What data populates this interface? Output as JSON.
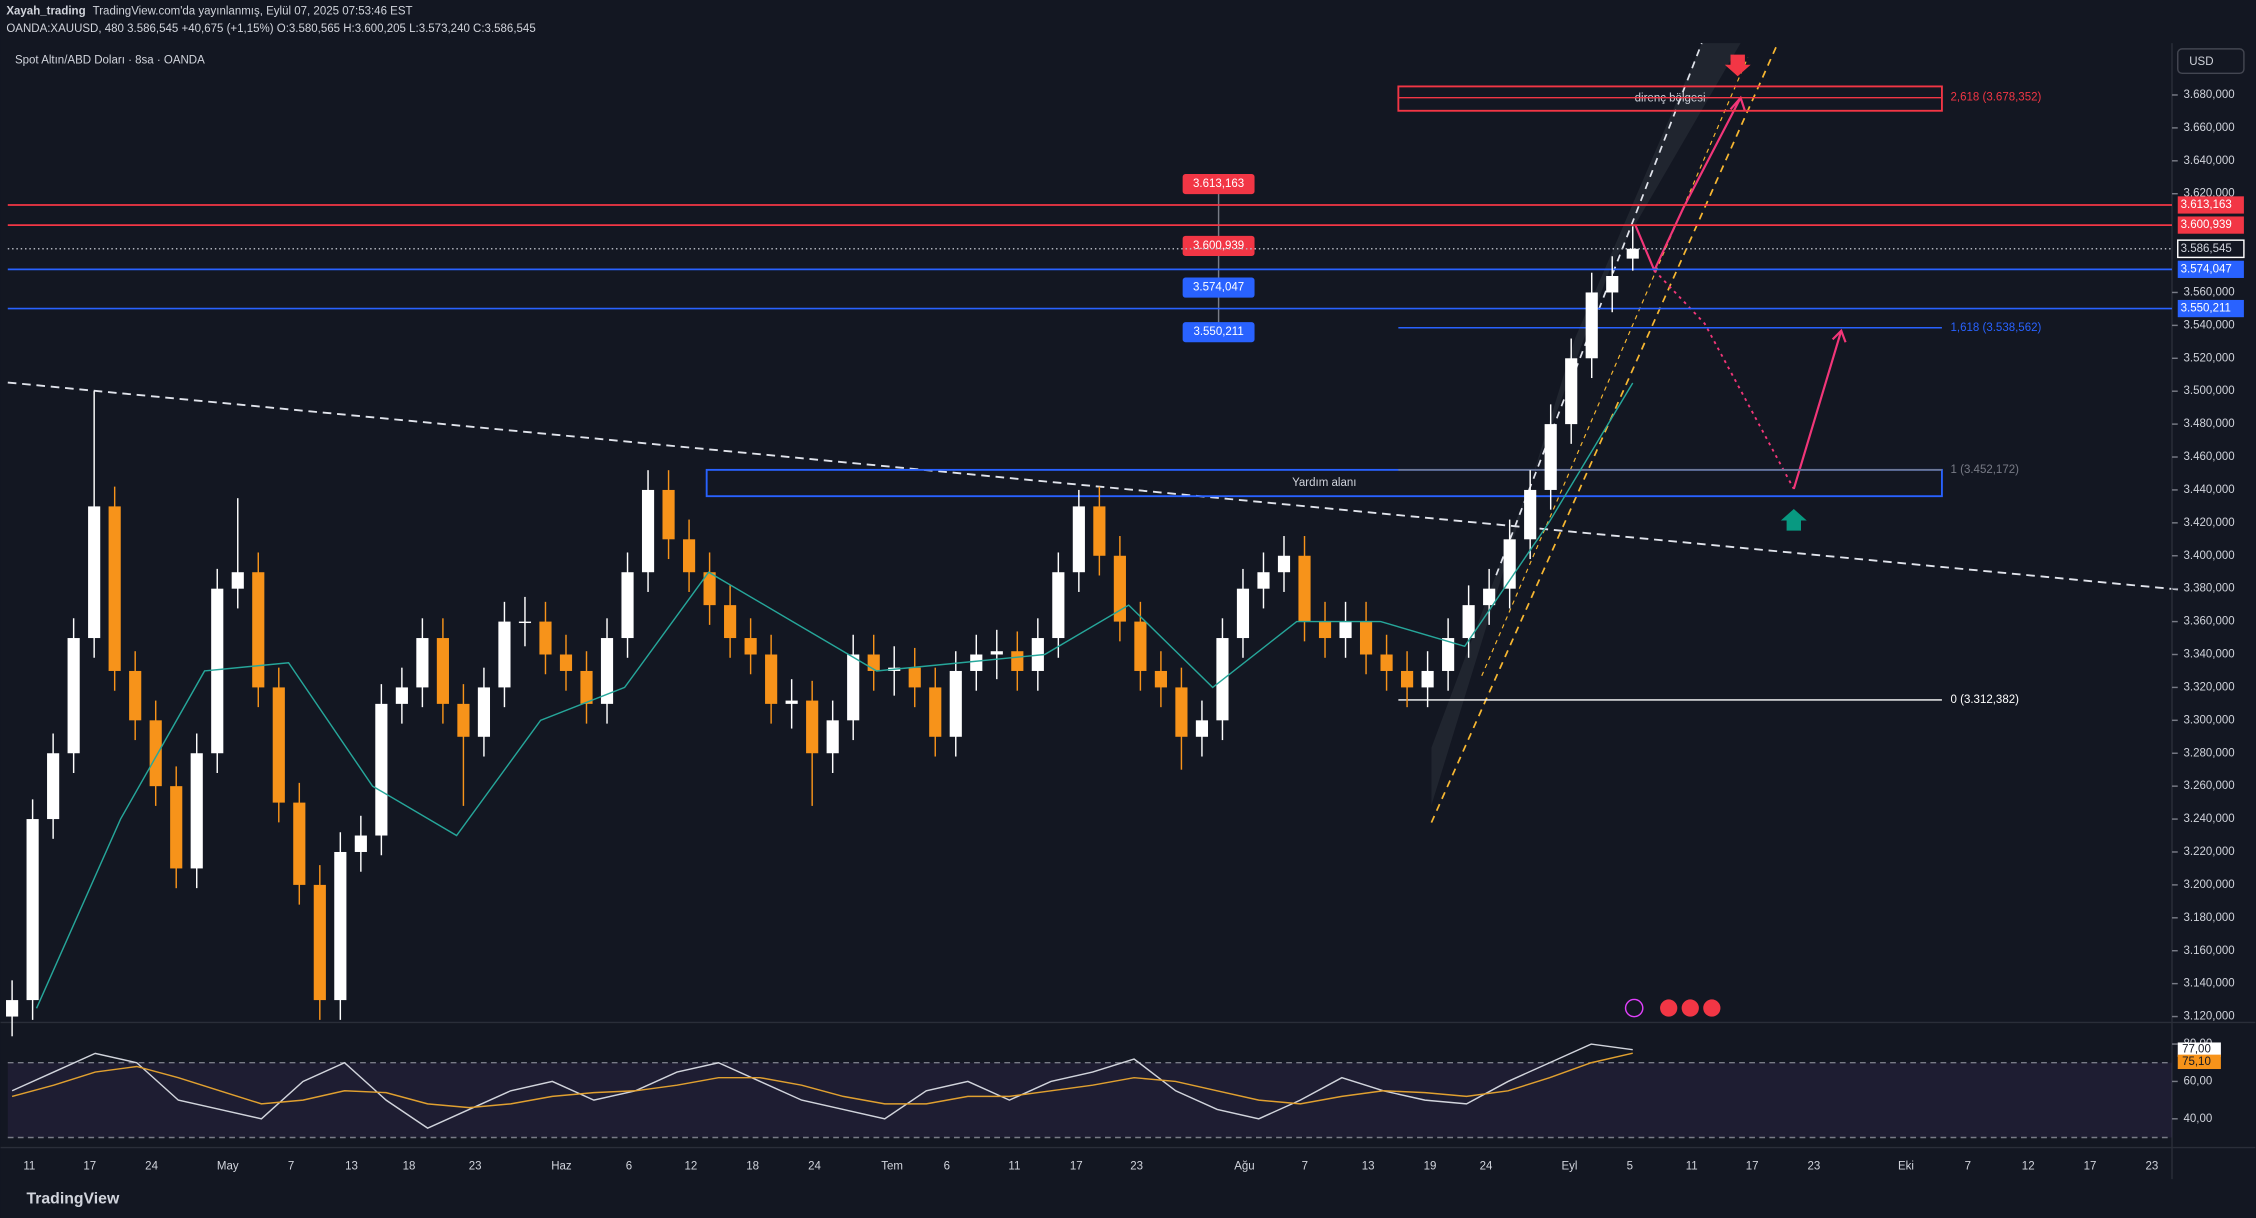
{
  "header": {
    "publisher": "Xayah_trading",
    "published": "TradingView.com'da yayınlanmış, Eylül 07, 2025 07:53:46 EST",
    "quote": "OANDA:XAUUSD, 480  3.586,545  +40,675 (+1,15%)  O:3.580,565  H:3.600,205  L:3.573,240  C:3.586,545"
  },
  "chart_data": {
    "type": "candlestick",
    "title": "Spot Altın/ABD Doları · 8sa · OANDA",
    "currency": "USD",
    "up_color": "#ffffff",
    "down_color": "#f7931a",
    "ohlc": [
      [
        3120,
        3142,
        3108,
        3130
      ],
      [
        3130,
        3252,
        3118,
        3240
      ],
      [
        3240,
        3292,
        3228,
        3280
      ],
      [
        3280,
        3362,
        3268,
        3350
      ],
      [
        3350,
        3500,
        3338,
        3430
      ],
      [
        3430,
        3442,
        3318,
        3330
      ],
      [
        3330,
        3342,
        3288,
        3300
      ],
      [
        3300,
        3312,
        3248,
        3260
      ],
      [
        3260,
        3272,
        3198,
        3210
      ],
      [
        3210,
        3292,
        3198,
        3280
      ],
      [
        3280,
        3392,
        3268,
        3380
      ],
      [
        3380,
        3435,
        3368,
        3390
      ],
      [
        3390,
        3402,
        3308,
        3320
      ],
      [
        3320,
        3332,
        3238,
        3250
      ],
      [
        3250,
        3262,
        3188,
        3200
      ],
      [
        3200,
        3212,
        3118,
        3130
      ],
      [
        3130,
        3232,
        3118,
        3220
      ],
      [
        3220,
        3242,
        3208,
        3230
      ],
      [
        3230,
        3322,
        3218,
        3310
      ],
      [
        3310,
        3332,
        3298,
        3320
      ],
      [
        3320,
        3362,
        3308,
        3350
      ],
      [
        3350,
        3362,
        3298,
        3310
      ],
      [
        3310,
        3322,
        3248,
        3290
      ],
      [
        3290,
        3332,
        3278,
        3320
      ],
      [
        3320,
        3372,
        3308,
        3360
      ],
      [
        3360,
        3375,
        3345,
        3360
      ],
      [
        3360,
        3372,
        3328,
        3340
      ],
      [
        3340,
        3352,
        3318,
        3330
      ],
      [
        3330,
        3342,
        3298,
        3310
      ],
      [
        3310,
        3362,
        3298,
        3350
      ],
      [
        3350,
        3402,
        3338,
        3390
      ],
      [
        3390,
        3452,
        3378,
        3440
      ],
      [
        3440,
        3452,
        3398,
        3410
      ],
      [
        3410,
        3422,
        3378,
        3390
      ],
      [
        3390,
        3402,
        3358,
        3370
      ],
      [
        3370,
        3382,
        3338,
        3350
      ],
      [
        3350,
        3362,
        3328,
        3340
      ],
      [
        3340,
        3352,
        3298,
        3310
      ],
      [
        3310,
        3325,
        3295,
        3312
      ],
      [
        3312,
        3324,
        3248,
        3280
      ],
      [
        3280,
        3312,
        3268,
        3300
      ],
      [
        3300,
        3352,
        3288,
        3340
      ],
      [
        3340,
        3352,
        3318,
        3330
      ],
      [
        3330,
        3345,
        3315,
        3332
      ],
      [
        3332,
        3344,
        3308,
        3320
      ],
      [
        3320,
        3332,
        3278,
        3290
      ],
      [
        3290,
        3342,
        3278,
        3330
      ],
      [
        3330,
        3352,
        3318,
        3340
      ],
      [
        3340,
        3355,
        3325,
        3342
      ],
      [
        3342,
        3354,
        3318,
        3330
      ],
      [
        3330,
        3362,
        3318,
        3350
      ],
      [
        3350,
        3402,
        3338,
        3390
      ],
      [
        3390,
        3440,
        3378,
        3430
      ],
      [
        3430,
        3442,
        3388,
        3400
      ],
      [
        3400,
        3412,
        3348,
        3360
      ],
      [
        3360,
        3372,
        3318,
        3330
      ],
      [
        3330,
        3342,
        3308,
        3320
      ],
      [
        3320,
        3332,
        3270,
        3290
      ],
      [
        3290,
        3312,
        3278,
        3300
      ],
      [
        3300,
        3362,
        3288,
        3350
      ],
      [
        3350,
        3392,
        3338,
        3380
      ],
      [
        3380,
        3402,
        3368,
        3390
      ],
      [
        3390,
        3412,
        3378,
        3400
      ],
      [
        3400,
        3412,
        3348,
        3360
      ],
      [
        3360,
        3372,
        3338,
        3350
      ],
      [
        3350,
        3372,
        3338,
        3360
      ],
      [
        3360,
        3372,
        3328,
        3340
      ],
      [
        3340,
        3352,
        3318,
        3330
      ],
      [
        3330,
        3342,
        3308,
        3320
      ],
      [
        3320,
        3342,
        3308,
        3330
      ],
      [
        3330,
        3362,
        3318,
        3350
      ],
      [
        3350,
        3382,
        3338,
        3370
      ],
      [
        3370,
        3392,
        3358,
        3380
      ],
      [
        3380,
        3422,
        3368,
        3410
      ],
      [
        3410,
        3452,
        3398,
        3440
      ],
      [
        3440,
        3492,
        3428,
        3480
      ],
      [
        3480,
        3532,
        3468,
        3520
      ],
      [
        3520,
        3572,
        3508,
        3560
      ],
      [
        3560,
        3582,
        3548,
        3570
      ],
      [
        3580.565,
        3600.205,
        3573.24,
        3586.545
      ]
    ],
    "ma": {
      "color": "#26a69a",
      "values": [
        3125,
        3240,
        3330,
        3335,
        3260,
        3230,
        3300,
        3320,
        3390,
        3360,
        3330,
        3335,
        3340,
        3370,
        3320,
        3360,
        3360,
        3345,
        3420,
        3505
      ]
    },
    "ylim": [
      3117.3,
      3711.5
    ],
    "yticks": [
      {
        "value": 3120,
        "label": "3.120,000"
      },
      {
        "value": 3140,
        "label": "3.140,000"
      },
      {
        "value": 3160,
        "label": "3.160,000"
      },
      {
        "value": 3180,
        "label": "3.180,000"
      },
      {
        "value": 3200,
        "label": "3.200,000"
      },
      {
        "value": 3220,
        "label": "3.220,000"
      },
      {
        "value": 3240,
        "label": "3.240,000"
      },
      {
        "value": 3260,
        "label": "3.260,000"
      },
      {
        "value": 3280,
        "label": "3.280,000"
      },
      {
        "value": 3300,
        "label": "3.300,000"
      },
      {
        "value": 3320,
        "label": "3.320,000"
      },
      {
        "value": 3340,
        "label": "3.340,000"
      },
      {
        "value": 3360,
        "label": "3.360,000"
      },
      {
        "value": 3380,
        "label": "3.380,000"
      },
      {
        "value": 3400,
        "label": "3.400,000"
      },
      {
        "value": 3420,
        "label": "3.420,000"
      },
      {
        "value": 3440,
        "label": "3.440,000"
      },
      {
        "value": 3460,
        "label": "3.460,000"
      },
      {
        "value": 3480,
        "label": "3.480,000"
      },
      {
        "value": 3500,
        "label": "3.500,000"
      },
      {
        "value": 3520,
        "label": "3.520,000"
      },
      {
        "value": 3540,
        "label": "3.540,000"
      },
      {
        "value": 3560,
        "label": "3.560,000"
      },
      {
        "value": 3620,
        "label": "3.620,000"
      },
      {
        "value": 3640,
        "label": "3.640,000"
      },
      {
        "value": 3660,
        "label": "3.660,000"
      },
      {
        "value": 3680,
        "label": "3.680,000"
      }
    ],
    "x_labels": [
      "11",
      "17",
      "24",
      "May",
      "7",
      "13",
      "18",
      "23",
      "Haz",
      "6",
      "12",
      "18",
      "24",
      "Tem",
      "6",
      "11",
      "17",
      "23",
      "Ağu",
      "7",
      "13",
      "19",
      "24",
      "Eyl",
      "5",
      "11",
      "17",
      "23",
      "Eki",
      "7",
      "12",
      "17",
      "23"
    ],
    "levels": [
      {
        "value": 3613.163,
        "label": "3.613,163",
        "color": "#f23645"
      },
      {
        "value": 3600.939,
        "label": "3.600,939",
        "color": "#f23645"
      },
      {
        "value": 3574.047,
        "label": "3.574,047",
        "color": "#2962ff"
      },
      {
        "value": 3550.211,
        "label": "3.550,211",
        "color": "#2962ff"
      }
    ],
    "last": {
      "value": 3586.545,
      "label": "3.586,545"
    },
    "fib": [
      {
        "value": 3678.352,
        "label": "2,618 (3.678,352)",
        "color": "#f23645"
      },
      {
        "value": 3538.562,
        "label": "1,618 (3.538,562)",
        "color": "#2962ff"
      },
      {
        "value": 3452.172,
        "label": "1 (3.452,172)",
        "color": "#787b86"
      },
      {
        "value": 3312.382,
        "label": "0 (3.312,382)",
        "color": "#ffffff"
      }
    ],
    "zones": [
      {
        "name": "direnç bölgesi",
        "top": 3685.2,
        "bottom": 3670.4,
        "color": "#f23645"
      },
      {
        "name": "Yardım alanı",
        "top": 3452.2,
        "bottom": 3436.2,
        "color": "#2962ff"
      }
    ],
    "rsi": {
      "color": "#d1d4dc",
      "ma_color": "#e0a030",
      "values": [
        55,
        65,
        75,
        70,
        50,
        45,
        40,
        60,
        70,
        50,
        35,
        45,
        55,
        60,
        50,
        55,
        65,
        70,
        60,
        50,
        45,
        40,
        55,
        60,
        50,
        60,
        65,
        72,
        55,
        45,
        40,
        50,
        62,
        55,
        50,
        48,
        60,
        70,
        80,
        77
      ],
      "ma": [
        52,
        58,
        65,
        68,
        62,
        55,
        48,
        50,
        55,
        54,
        48,
        46,
        48,
        52,
        54,
        55,
        58,
        62,
        62,
        58,
        52,
        48,
        48,
        52,
        52,
        55,
        58,
        62,
        60,
        55,
        50,
        48,
        52,
        55,
        54,
        52,
        55,
        62,
        70,
        75.1
      ],
      "ylim": [
        25.4,
        90.8
      ],
      "yticks": [
        {
          "value": 40,
          "label": "40,00"
        },
        {
          "value": 60,
          "label": "60,00"
        },
        {
          "value": 80,
          "label": "80,00"
        }
      ],
      "badges": [
        {
          "value": 77,
          "label": "77,00",
          "color": "#ffffff"
        },
        {
          "value": 75.1,
          "label": "75,10",
          "color": "#f7931a"
        }
      ]
    }
  },
  "footer": "TradingView"
}
